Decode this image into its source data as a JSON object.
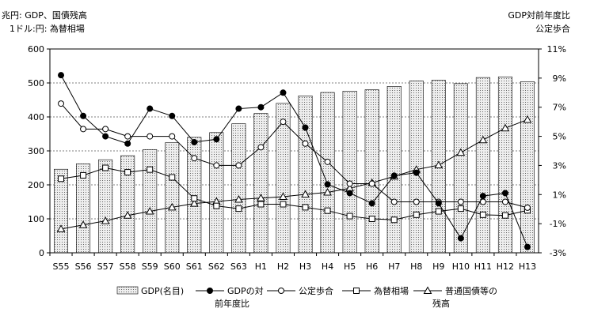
{
  "labels": {
    "left_unit_1": "兆円: GDP、国債残高",
    "left_unit_2": "1ドル:円: 為替相場",
    "right_unit_1": "GDP対前年度比",
    "right_unit_2": "公定歩合"
  },
  "chart_data": {
    "type": "bar",
    "categories": [
      "S55",
      "S56",
      "S57",
      "S58",
      "S59",
      "S60",
      "S61",
      "S62",
      "S63",
      "H1",
      "H2",
      "H3",
      "H4",
      "H5",
      "H6",
      "H7",
      "H8",
      "H9",
      "H10",
      "H11",
      "H12",
      "H13"
    ],
    "y_left": {
      "range": [
        0,
        600
      ],
      "ticks": [
        0,
        100,
        200,
        300,
        400,
        500,
        600
      ]
    },
    "y_right": {
      "range": [
        -3,
        11
      ],
      "ticks": [
        "-3%",
        "-1%",
        "1%",
        "3%",
        "5%",
        "7%",
        "9%",
        "11%"
      ]
    },
    "grid": "horizontal dashed",
    "legend_position": "bottom",
    "colors": {
      "bar_fill": "#e6e6e6",
      "line": "#000000"
    },
    "series": [
      {
        "name": "GDP(名目)",
        "kind": "bar",
        "axis": "left",
        "values": [
          246,
          262,
          274,
          286,
          304,
          324,
          340,
          354,
          380,
          410,
          440,
          462,
          472,
          476,
          480,
          490,
          506,
          508,
          498,
          516,
          518,
          504
        ]
      },
      {
        "name": "GDPの対前年度比",
        "kind": "line",
        "marker": "filled-circle",
        "axis": "right",
        "values": [
          9.2,
          6.4,
          5.0,
          4.5,
          6.9,
          6.4,
          4.6,
          4.8,
          6.9,
          7.0,
          8.0,
          5.6,
          1.7,
          1.1,
          0.4,
          2.3,
          2.5,
          0.4,
          -2.0,
          0.9,
          1.1,
          -2.6
        ]
      },
      {
        "name": "公定歩合",
        "kind": "line",
        "marker": "open-circle",
        "axis": "right",
        "values": [
          7.25,
          5.5,
          5.5,
          5.0,
          5.0,
          5.0,
          3.5,
          3.0,
          3.0,
          4.25,
          6.0,
          4.5,
          3.25,
          1.75,
          1.75,
          0.5,
          0.5,
          0.5,
          0.5,
          0.5,
          0.5,
          0.1
        ]
      },
      {
        "name": "為替相場",
        "kind": "line",
        "marker": "open-square",
        "axis": "left",
        "values": [
          218,
          228,
          250,
          237,
          245,
          222,
          160,
          138,
          130,
          143,
          143,
          134,
          124,
          108,
          100,
          97,
          112,
          122,
          130,
          112,
          110,
          125
        ]
      },
      {
        "name": "普通国債等の残高",
        "kind": "line",
        "marker": "open-triangle",
        "axis": "left",
        "values": [
          70,
          82,
          94,
          110,
          122,
          134,
          145,
          151,
          157,
          161,
          165,
          172,
          178,
          190,
          206,
          225,
          245,
          258,
          295,
          332,
          367,
          392
        ]
      }
    ],
    "legend": [
      {
        "label": "GDP(名目)",
        "marker": "bar"
      },
      {
        "label": "GDPの対\n前年度比",
        "marker": "filled-circle"
      },
      {
        "label": "公定歩合",
        "marker": "open-circle"
      },
      {
        "label": "為替相場",
        "marker": "open-square"
      },
      {
        "label": "普通国債等の\n残高",
        "marker": "open-triangle"
      }
    ]
  }
}
